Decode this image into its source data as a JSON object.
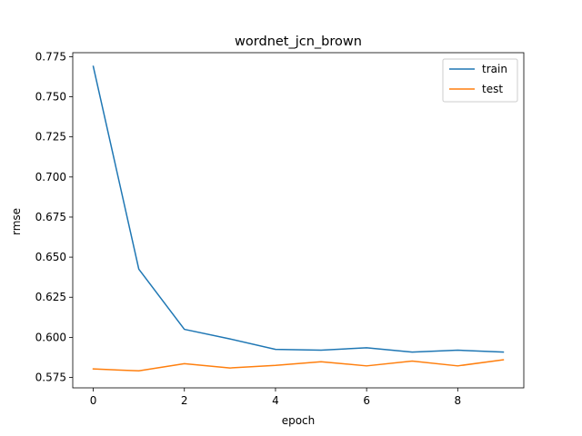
{
  "chart_data": {
    "type": "line",
    "title": "wordnet_jcn_brown",
    "xlabel": "epoch",
    "ylabel": "rmse",
    "x": [
      0,
      1,
      2,
      3,
      4,
      5,
      6,
      7,
      8,
      9
    ],
    "xlim": [
      -0.45,
      9.45
    ],
    "ylim": [
      0.5685,
      0.7775
    ],
    "xticks": [
      0,
      2,
      4,
      6,
      8
    ],
    "yticks": [
      0.575,
      0.6,
      0.625,
      0.65,
      0.675,
      0.7,
      0.725,
      0.75,
      0.775
    ],
    "ytick_labels": [
      "0.575",
      "0.600",
      "0.625",
      "0.650",
      "0.675",
      "0.700",
      "0.725",
      "0.750",
      "0.775"
    ],
    "grid": false,
    "legend_position": "top-right",
    "series": [
      {
        "name": "train",
        "color": "#1f77b4",
        "values": [
          0.769,
          0.6425,
          0.605,
          0.599,
          0.5925,
          0.592,
          0.5935,
          0.5908,
          0.592,
          0.5908
        ]
      },
      {
        "name": "test",
        "color": "#ff7f0e",
        "values": [
          0.5803,
          0.5791,
          0.5836,
          0.5809,
          0.5825,
          0.5848,
          0.5822,
          0.5852,
          0.5822,
          0.586
        ]
      }
    ]
  }
}
